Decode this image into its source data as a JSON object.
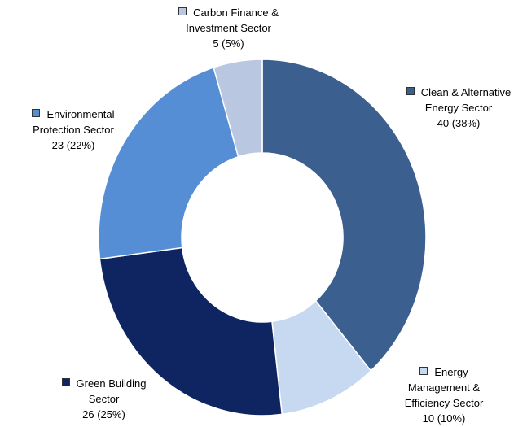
{
  "chart_data": {
    "type": "donut",
    "categories": [
      "Clean & Alternative Energy Sector",
      "Energy Management & Efficiency Sector",
      "Green Building Sector",
      "Environmental Protection Sector",
      "Carbon Finance & Investment Sector"
    ],
    "values": [
      40,
      10,
      26,
      23,
      5
    ],
    "value_labels": [
      "40 (38%)",
      "10 (10%)",
      "26 (25%)",
      "23 (22%)",
      "5 (5%)"
    ],
    "colors": [
      "#3b5f8f",
      "#c6d9f1",
      "#0e2561",
      "#558ed5",
      "#b9c7e0"
    ]
  }
}
